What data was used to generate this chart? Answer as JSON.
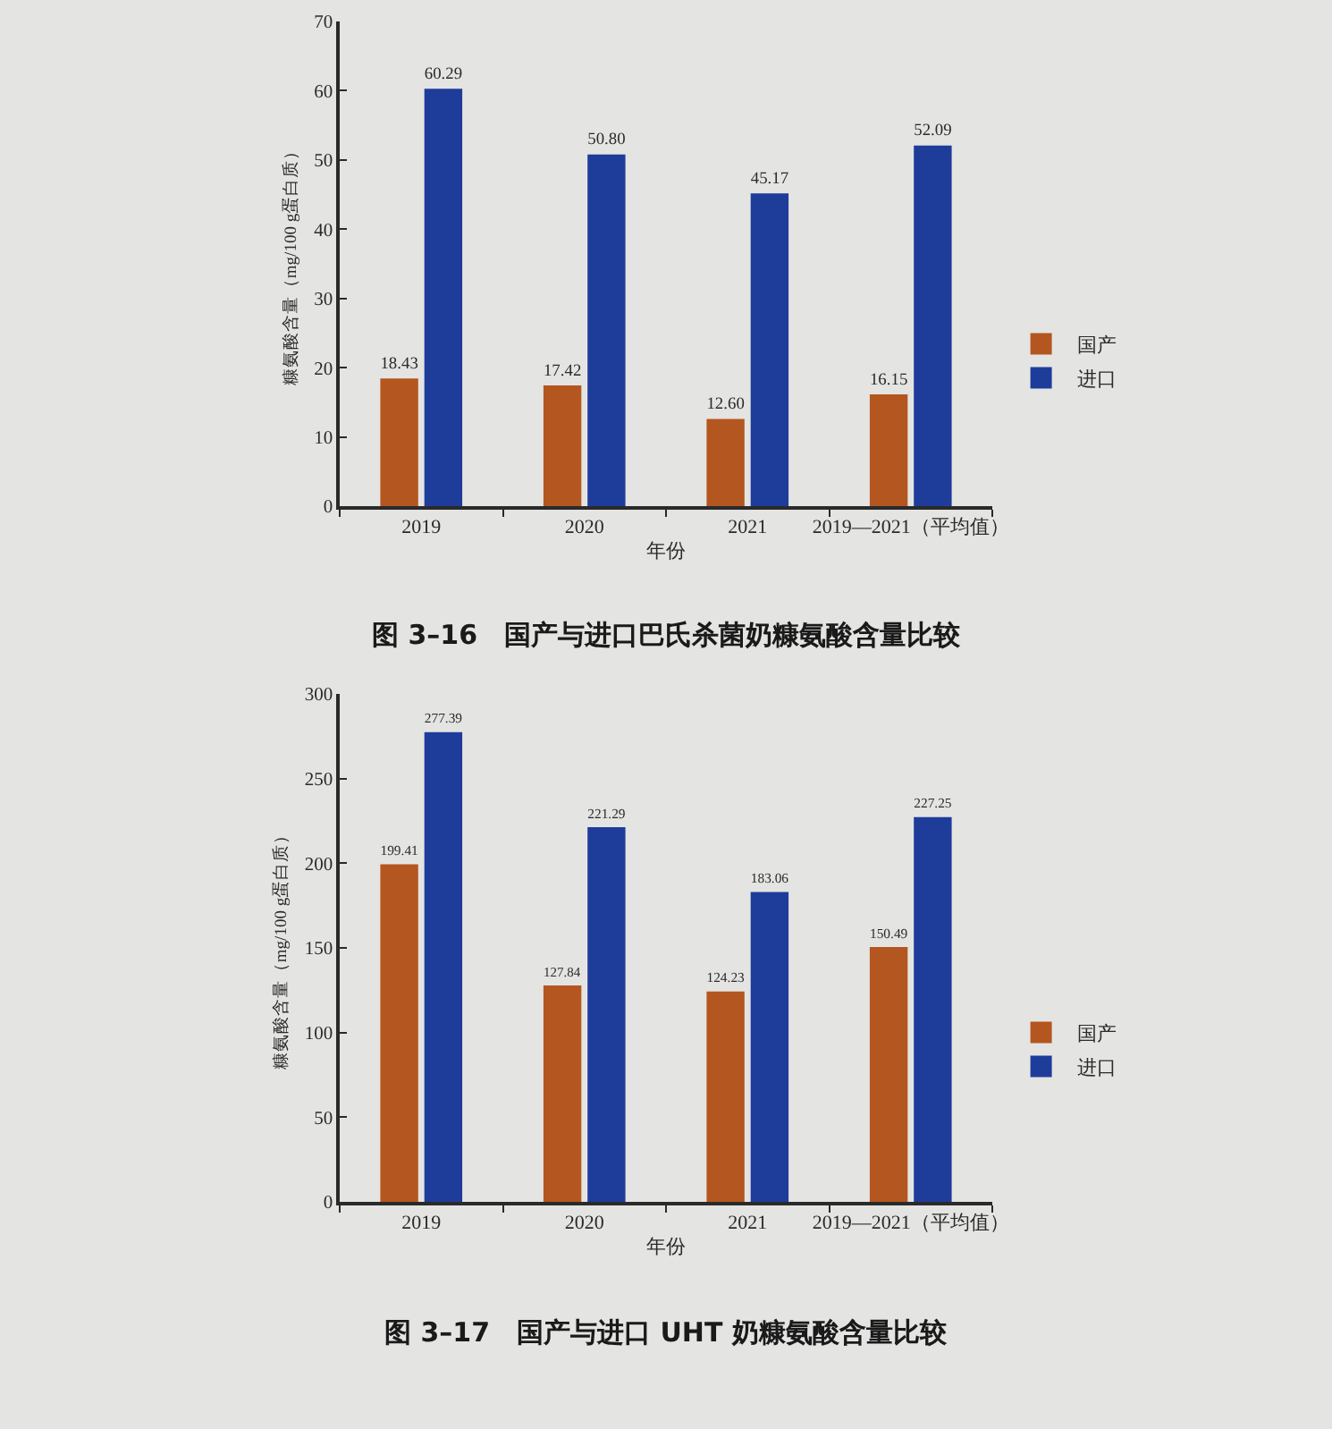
{
  "chart_data": [
    {
      "type": "bar",
      "title": "图 3–16　国产与进口巴氏杀菌奶糠氨酸含量比较",
      "xlabel": "年份",
      "ylabel": "糠氨酸含量（mg/100 g蛋白质）",
      "categories": [
        "2019",
        "2020",
        "2021",
        "2019—2021（平均值）"
      ],
      "series": [
        {
          "name": "国产",
          "color": "#b4561f",
          "values": [
            18.43,
            17.42,
            12.6,
            16.15
          ],
          "value_labels": [
            "18.43",
            "17.42",
            "12.60",
            "16.15"
          ]
        },
        {
          "name": "进口",
          "color": "#1e3c9a",
          "values": [
            60.29,
            50.8,
            45.17,
            52.09
          ],
          "value_labels": [
            "60.29",
            "50.80",
            "45.17",
            "52.09"
          ]
        }
      ],
      "ylim": [
        0,
        70
      ],
      "yticks": [
        0,
        10,
        20,
        30,
        40,
        50,
        60,
        70
      ],
      "legend": "right"
    },
    {
      "type": "bar",
      "title": "图 3–17　国产与进口 UHT 奶糠氨酸含量比较",
      "xlabel": "年份",
      "ylabel": "糠氨酸含量（mg/100 g蛋白质）",
      "categories": [
        "2019",
        "2020",
        "2021",
        "2019—2021（平均值）"
      ],
      "series": [
        {
          "name": "国产",
          "color": "#b4561f",
          "values": [
            199.41,
            127.84,
            124.23,
            150.49
          ],
          "value_labels": [
            "199.41",
            "127.84",
            "124.23",
            "150.49"
          ]
        },
        {
          "name": "进口",
          "color": "#1e3c9a",
          "values": [
            277.39,
            221.29,
            183.06,
            227.25
          ],
          "value_labels": [
            "277.39",
            "221.29",
            "183.06",
            "227.25"
          ]
        }
      ],
      "ylim": [
        0,
        300
      ],
      "yticks": [
        0,
        50,
        100,
        150,
        200,
        250,
        300
      ],
      "legend": "right"
    }
  ]
}
